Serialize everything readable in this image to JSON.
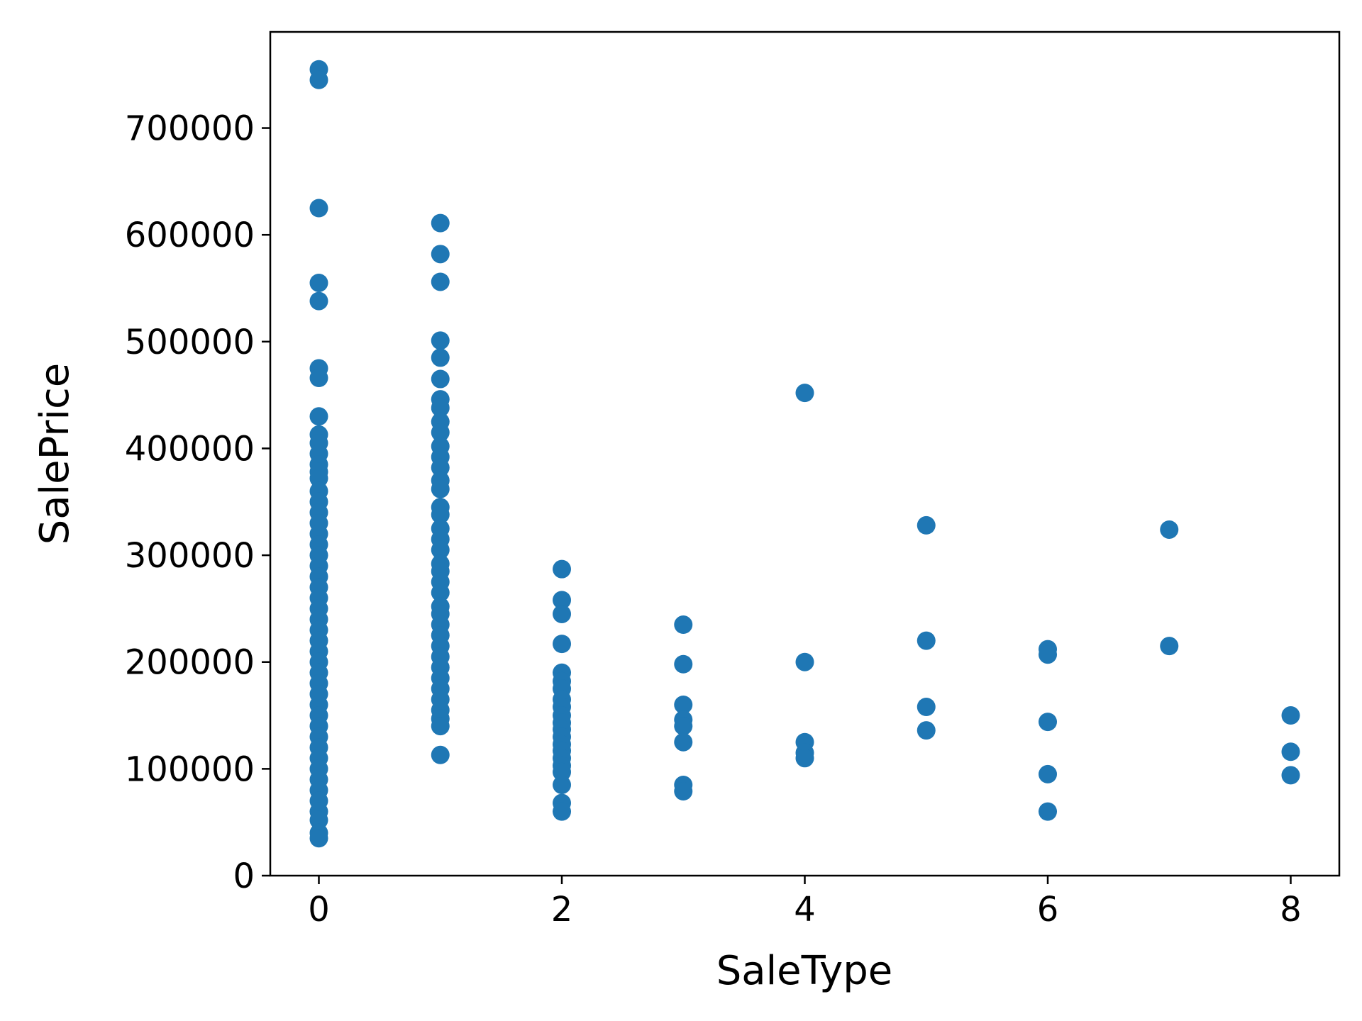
{
  "chart_data": {
    "type": "scatter",
    "title": "",
    "xlabel": "SaleType",
    "ylabel": "SalePrice",
    "xlim": [
      -0.4,
      8.4
    ],
    "ylim": [
      0,
      790000
    ],
    "xticks": [
      0,
      2,
      4,
      6,
      8
    ],
    "xtick_labels": [
      "0",
      "2",
      "4",
      "6",
      "8"
    ],
    "yticks": [
      0,
      100000,
      200000,
      300000,
      400000,
      500000,
      600000,
      700000
    ],
    "ytick_labels": [
      "0",
      "100000",
      "200000",
      "300000",
      "400000",
      "500000",
      "600000",
      "700000"
    ],
    "grid": false,
    "marker_color": "#1f77b4",
    "series": [
      {
        "points": [
          {
            "x": 0,
            "y": 755000
          },
          {
            "x": 0,
            "y": 745000
          },
          {
            "x": 0,
            "y": 625000
          },
          {
            "x": 0,
            "y": 555000
          },
          {
            "x": 0,
            "y": 538000
          },
          {
            "x": 0,
            "y": 475000
          },
          {
            "x": 0,
            "y": 466000
          },
          {
            "x": 0,
            "y": 430000
          },
          {
            "x": 0,
            "y": 413000
          },
          {
            "x": 0,
            "y": 405000
          },
          {
            "x": 0,
            "y": 395000
          },
          {
            "x": 0,
            "y": 385000
          },
          {
            "x": 0,
            "y": 378000
          },
          {
            "x": 0,
            "y": 372000
          },
          {
            "x": 0,
            "y": 360000
          },
          {
            "x": 0,
            "y": 350000
          },
          {
            "x": 0,
            "y": 340000
          },
          {
            "x": 0,
            "y": 330000
          },
          {
            "x": 0,
            "y": 320000
          },
          {
            "x": 0,
            "y": 310000
          },
          {
            "x": 0,
            "y": 300000
          },
          {
            "x": 0,
            "y": 290000
          },
          {
            "x": 0,
            "y": 280000
          },
          {
            "x": 0,
            "y": 270000
          },
          {
            "x": 0,
            "y": 260000
          },
          {
            "x": 0,
            "y": 250000
          },
          {
            "x": 0,
            "y": 240000
          },
          {
            "x": 0,
            "y": 230000
          },
          {
            "x": 0,
            "y": 220000
          },
          {
            "x": 0,
            "y": 210000
          },
          {
            "x": 0,
            "y": 200000
          },
          {
            "x": 0,
            "y": 190000
          },
          {
            "x": 0,
            "y": 180000
          },
          {
            "x": 0,
            "y": 170000
          },
          {
            "x": 0,
            "y": 160000
          },
          {
            "x": 0,
            "y": 150000
          },
          {
            "x": 0,
            "y": 140000
          },
          {
            "x": 0,
            "y": 130000
          },
          {
            "x": 0,
            "y": 120000
          },
          {
            "x": 0,
            "y": 110000
          },
          {
            "x": 0,
            "y": 100000
          },
          {
            "x": 0,
            "y": 90000
          },
          {
            "x": 0,
            "y": 80000
          },
          {
            "x": 0,
            "y": 70000
          },
          {
            "x": 0,
            "y": 60000
          },
          {
            "x": 0,
            "y": 52000
          },
          {
            "x": 0,
            "y": 40000
          },
          {
            "x": 0,
            "y": 35000
          },
          {
            "x": 1,
            "y": 611000
          },
          {
            "x": 1,
            "y": 582000
          },
          {
            "x": 1,
            "y": 556000
          },
          {
            "x": 1,
            "y": 501000
          },
          {
            "x": 1,
            "y": 485000
          },
          {
            "x": 1,
            "y": 465000
          },
          {
            "x": 1,
            "y": 446000
          },
          {
            "x": 1,
            "y": 438000
          },
          {
            "x": 1,
            "y": 425000
          },
          {
            "x": 1,
            "y": 415000
          },
          {
            "x": 1,
            "y": 402000
          },
          {
            "x": 1,
            "y": 392000
          },
          {
            "x": 1,
            "y": 382000
          },
          {
            "x": 1,
            "y": 370000
          },
          {
            "x": 1,
            "y": 362000
          },
          {
            "x": 1,
            "y": 345000
          },
          {
            "x": 1,
            "y": 338000
          },
          {
            "x": 1,
            "y": 325000
          },
          {
            "x": 1,
            "y": 315000
          },
          {
            "x": 1,
            "y": 305000
          },
          {
            "x": 1,
            "y": 292000
          },
          {
            "x": 1,
            "y": 285000
          },
          {
            "x": 1,
            "y": 275000
          },
          {
            "x": 1,
            "y": 265000
          },
          {
            "x": 1,
            "y": 252000
          },
          {
            "x": 1,
            "y": 245000
          },
          {
            "x": 1,
            "y": 235000
          },
          {
            "x": 1,
            "y": 225000
          },
          {
            "x": 1,
            "y": 215000
          },
          {
            "x": 1,
            "y": 205000
          },
          {
            "x": 1,
            "y": 195000
          },
          {
            "x": 1,
            "y": 185000
          },
          {
            "x": 1,
            "y": 175000
          },
          {
            "x": 1,
            "y": 165000
          },
          {
            "x": 1,
            "y": 155000
          },
          {
            "x": 1,
            "y": 147000
          },
          {
            "x": 1,
            "y": 140000
          },
          {
            "x": 1,
            "y": 113000
          },
          {
            "x": 2,
            "y": 287000
          },
          {
            "x": 2,
            "y": 258000
          },
          {
            "x": 2,
            "y": 245000
          },
          {
            "x": 2,
            "y": 217000
          },
          {
            "x": 2,
            "y": 190000
          },
          {
            "x": 2,
            "y": 182000
          },
          {
            "x": 2,
            "y": 175000
          },
          {
            "x": 2,
            "y": 165000
          },
          {
            "x": 2,
            "y": 158000
          },
          {
            "x": 2,
            "y": 150000
          },
          {
            "x": 2,
            "y": 143000
          },
          {
            "x": 2,
            "y": 137000
          },
          {
            "x": 2,
            "y": 130000
          },
          {
            "x": 2,
            "y": 123000
          },
          {
            "x": 2,
            "y": 117000
          },
          {
            "x": 2,
            "y": 110000
          },
          {
            "x": 2,
            "y": 103000
          },
          {
            "x": 2,
            "y": 97000
          },
          {
            "x": 2,
            "y": 85000
          },
          {
            "x": 2,
            "y": 68000
          },
          {
            "x": 2,
            "y": 60000
          },
          {
            "x": 3,
            "y": 235000
          },
          {
            "x": 3,
            "y": 198000
          },
          {
            "x": 3,
            "y": 160000
          },
          {
            "x": 3,
            "y": 146000
          },
          {
            "x": 3,
            "y": 140000
          },
          {
            "x": 3,
            "y": 125000
          },
          {
            "x": 3,
            "y": 85000
          },
          {
            "x": 3,
            "y": 79000
          },
          {
            "x": 4,
            "y": 452000
          },
          {
            "x": 4,
            "y": 200000
          },
          {
            "x": 4,
            "y": 125000
          },
          {
            "x": 4,
            "y": 115000
          },
          {
            "x": 4,
            "y": 110000
          },
          {
            "x": 5,
            "y": 328000
          },
          {
            "x": 5,
            "y": 220000
          },
          {
            "x": 5,
            "y": 158000
          },
          {
            "x": 5,
            "y": 136000
          },
          {
            "x": 6,
            "y": 212000
          },
          {
            "x": 6,
            "y": 207000
          },
          {
            "x": 6,
            "y": 144000
          },
          {
            "x": 6,
            "y": 95000
          },
          {
            "x": 6,
            "y": 60000
          },
          {
            "x": 7,
            "y": 324000
          },
          {
            "x": 7,
            "y": 215000
          },
          {
            "x": 8,
            "y": 150000
          },
          {
            "x": 8,
            "y": 116000
          },
          {
            "x": 8,
            "y": 94000
          }
        ]
      }
    ]
  }
}
